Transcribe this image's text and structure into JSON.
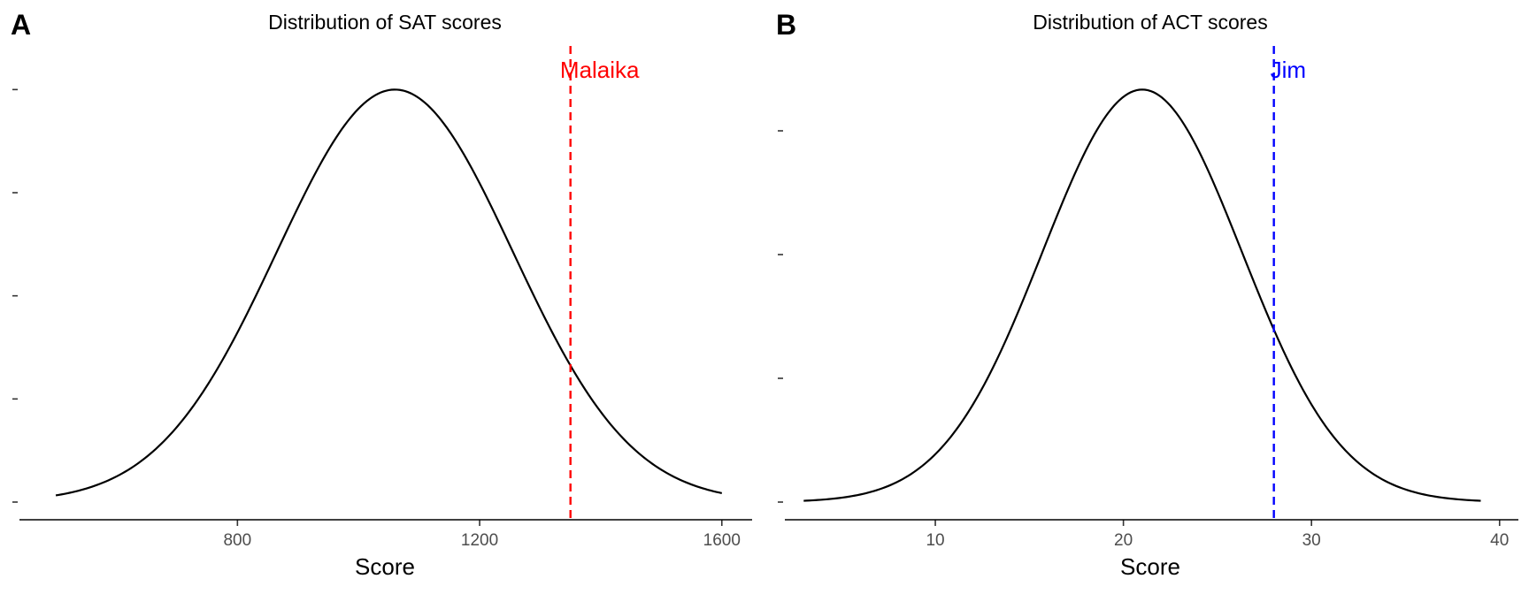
{
  "chart_data": [
    {
      "panel": "A",
      "type": "line",
      "title": "Distribution of SAT scores",
      "xlabel": "Score",
      "ylabel": "",
      "xlim": [
        440,
        1650
      ],
      "xticks": [
        800,
        1200,
        1600
      ],
      "ylim": [
        0,
        1.05
      ],
      "yticks": [
        0,
        0.25,
        0.5,
        0.75,
        1.0
      ],
      "ytick_labels_shown": false,
      "grid": false,
      "legend": "none",
      "series": [
        {
          "curve": "normal",
          "mean": 1060,
          "sd": 195,
          "x_range": [
            500,
            1600
          ],
          "color": "#000000"
        }
      ],
      "vline": {
        "x": 1350,
        "label": "Malaika",
        "color": "#ff0000",
        "style": "dashed"
      }
    },
    {
      "panel": "B",
      "type": "line",
      "title": "Distribution of ACT scores",
      "xlabel": "Score",
      "ylabel": "",
      "xlim": [
        2,
        41
      ],
      "xticks": [
        10,
        20,
        30,
        40
      ],
      "ylim": [
        0,
        1.05
      ],
      "yticks": [
        0,
        0.3,
        0.6,
        0.9
      ],
      "ytick_labels_shown": false,
      "grid": false,
      "legend": "none",
      "series": [
        {
          "curve": "normal",
          "mean": 21,
          "sd": 5.3,
          "x_range": [
            3,
            39
          ],
          "color": "#000000"
        }
      ],
      "vline": {
        "x": 28,
        "label": "Jim",
        "color": "#0000ff",
        "style": "dashed"
      }
    }
  ]
}
